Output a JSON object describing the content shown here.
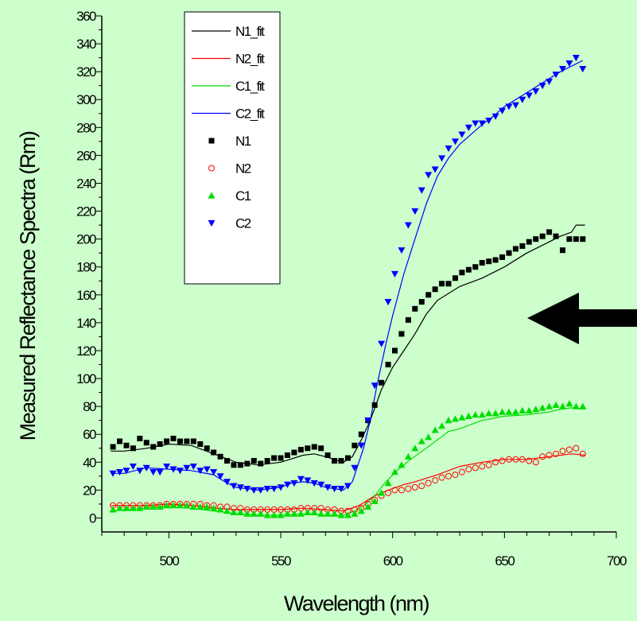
{
  "chart_data": {
    "type": "scatter",
    "title": "",
    "xlabel": "Wavelength (nm)",
    "ylabel": "Measured Reflectance Spectra (Rm)",
    "xlim": [
      470,
      700
    ],
    "ylim": [
      -10,
      360
    ],
    "xticks": [
      500,
      550,
      600,
      650,
      700
    ],
    "yticks": [
      0,
      20,
      40,
      60,
      80,
      100,
      120,
      140,
      160,
      180,
      200,
      220,
      240,
      260,
      280,
      300,
      320,
      340,
      360
    ],
    "x_tick_labels": [
      "500",
      "550",
      "600",
      "650",
      "700"
    ],
    "y_tick_labels": [
      "0",
      "20",
      "40",
      "60",
      "80",
      "100",
      "120",
      "140",
      "160",
      "180",
      "200",
      "220",
      "240",
      "260",
      "280",
      "300",
      "320",
      "340",
      "360"
    ],
    "grid": false,
    "legend_placement": "top-left",
    "legend": [
      {
        "label": "N1_fit",
        "kind": "line",
        "series": "N1"
      },
      {
        "label": "N2_fit",
        "kind": "line",
        "series": "N2"
      },
      {
        "label": "C1_fit",
        "kind": "line",
        "series": "C1"
      },
      {
        "label": "C2_fit",
        "kind": "line",
        "series": "C2"
      },
      {
        "label": "N1",
        "kind": "marker",
        "series": "N1"
      },
      {
        "label": "N2",
        "kind": "marker",
        "series": "N2"
      },
      {
        "label": "C1",
        "kind": "marker",
        "series": "C1"
      },
      {
        "label": "C2",
        "kind": "marker",
        "series": "C2"
      }
    ],
    "fits": [
      {
        "name": "N1_fit",
        "color": "#000000",
        "points": [
          [
            474,
            48
          ],
          [
            480,
            48
          ],
          [
            490,
            50
          ],
          [
            500,
            53
          ],
          [
            510,
            52
          ],
          [
            520,
            46
          ],
          [
            530,
            40
          ],
          [
            540,
            38
          ],
          [
            550,
            40
          ],
          [
            560,
            45
          ],
          [
            565,
            46
          ],
          [
            570,
            44
          ],
          [
            578,
            40
          ],
          [
            582,
            44
          ],
          [
            586,
            56
          ],
          [
            590,
            70
          ],
          [
            595,
            92
          ],
          [
            600,
            108
          ],
          [
            605,
            120
          ],
          [
            610,
            132
          ],
          [
            615,
            146
          ],
          [
            620,
            156
          ],
          [
            630,
            166
          ],
          [
            640,
            172
          ],
          [
            650,
            180
          ],
          [
            660,
            190
          ],
          [
            670,
            198
          ],
          [
            675,
            202
          ],
          [
            680,
            205
          ],
          [
            682,
            210
          ],
          [
            686,
            210
          ]
        ]
      },
      {
        "name": "N2_fit",
        "color": "#ff0000",
        "points": [
          [
            474,
            9
          ],
          [
            480,
            9
          ],
          [
            490,
            9
          ],
          [
            500,
            10
          ],
          [
            510,
            9
          ],
          [
            520,
            7
          ],
          [
            530,
            6
          ],
          [
            540,
            6
          ],
          [
            550,
            6
          ],
          [
            560,
            7
          ],
          [
            570,
            6
          ],
          [
            578,
            5
          ],
          [
            585,
            9
          ],
          [
            592,
            16
          ],
          [
            598,
            20
          ],
          [
            605,
            24
          ],
          [
            610,
            26
          ],
          [
            620,
            31
          ],
          [
            630,
            37
          ],
          [
            640,
            40
          ],
          [
            650,
            42
          ],
          [
            660,
            42
          ],
          [
            670,
            44
          ],
          [
            680,
            46
          ],
          [
            686,
            45
          ]
        ]
      },
      {
        "name": "C1_fit",
        "color": "#00dd00",
        "points": [
          [
            474,
            5
          ],
          [
            480,
            6
          ],
          [
            490,
            7
          ],
          [
            500,
            8
          ],
          [
            510,
            7
          ],
          [
            520,
            5
          ],
          [
            530,
            3
          ],
          [
            540,
            2
          ],
          [
            550,
            2
          ],
          [
            560,
            3
          ],
          [
            570,
            2
          ],
          [
            578,
            2
          ],
          [
            583,
            5
          ],
          [
            588,
            10
          ],
          [
            592,
            16
          ],
          [
            597,
            26
          ],
          [
            602,
            34
          ],
          [
            608,
            42
          ],
          [
            615,
            50
          ],
          [
            620,
            56
          ],
          [
            625,
            62
          ],
          [
            630,
            64
          ],
          [
            640,
            70
          ],
          [
            650,
            73
          ],
          [
            660,
            74
          ],
          [
            670,
            76
          ],
          [
            675,
            78
          ],
          [
            680,
            79
          ],
          [
            686,
            78
          ]
        ]
      },
      {
        "name": "C2_fit",
        "color": "#0000ff",
        "points": [
          [
            474,
            32
          ],
          [
            480,
            32
          ],
          [
            490,
            36
          ],
          [
            500,
            35
          ],
          [
            510,
            34
          ],
          [
            520,
            31
          ],
          [
            525,
            26
          ],
          [
            530,
            22
          ],
          [
            540,
            20
          ],
          [
            550,
            22
          ],
          [
            555,
            25
          ],
          [
            560,
            26
          ],
          [
            565,
            25
          ],
          [
            570,
            22
          ],
          [
            578,
            20
          ],
          [
            582,
            26
          ],
          [
            587,
            50
          ],
          [
            590,
            70
          ],
          [
            593,
            95
          ],
          [
            597,
            125
          ],
          [
            600,
            145
          ],
          [
            605,
            175
          ],
          [
            610,
            200
          ],
          [
            615,
            225
          ],
          [
            620,
            245
          ],
          [
            625,
            258
          ],
          [
            630,
            268
          ],
          [
            635,
            275
          ],
          [
            640,
            282
          ],
          [
            645,
            288
          ],
          [
            650,
            295
          ],
          [
            655,
            300
          ],
          [
            660,
            305
          ],
          [
            665,
            310
          ],
          [
            670,
            315
          ],
          [
            675,
            320
          ],
          [
            680,
            324
          ],
          [
            685,
            328
          ]
        ]
      }
    ],
    "series": [
      {
        "name": "N1",
        "marker": "square",
        "color": "#000000",
        "x": [
          475,
          478,
          481,
          484,
          487,
          490,
          493,
          496,
          499,
          502,
          505,
          508,
          511,
          514,
          517,
          520,
          523,
          526,
          529,
          532,
          535,
          538,
          541,
          544,
          547,
          550,
          553,
          556,
          559,
          562,
          565,
          568,
          571,
          574,
          577,
          580,
          583,
          586,
          589,
          592,
          595,
          598,
          601,
          604,
          607,
          610,
          613,
          616,
          619,
          622,
          625,
          628,
          631,
          634,
          637,
          640,
          643,
          646,
          649,
          652,
          655,
          658,
          661,
          664,
          667,
          670,
          673,
          676,
          679,
          682,
          685
        ],
        "y": [
          51,
          55,
          52,
          50,
          57,
          54,
          51,
          53,
          55,
          57,
          55,
          55,
          55,
          53,
          50,
          47,
          44,
          41,
          38,
          38,
          39,
          41,
          39,
          41,
          43,
          43,
          45,
          47,
          49,
          50,
          51,
          50,
          45,
          41,
          41,
          43,
          52,
          60,
          70,
          81,
          97,
          110,
          120,
          132,
          142,
          150,
          155,
          160,
          164,
          168,
          168,
          172,
          176,
          178,
          180,
          183,
          184,
          185,
          187,
          190,
          193,
          195,
          198,
          200,
          202,
          205,
          202,
          192,
          200,
          200,
          200
        ]
      },
      {
        "name": "N2",
        "marker": "open-circle",
        "color": "#ff0000",
        "x": [
          475,
          478,
          481,
          484,
          487,
          490,
          493,
          496,
          499,
          502,
          505,
          508,
          511,
          514,
          517,
          520,
          523,
          526,
          529,
          532,
          535,
          538,
          541,
          544,
          547,
          550,
          553,
          556,
          559,
          562,
          565,
          568,
          571,
          574,
          577,
          580,
          583,
          586,
          589,
          592,
          595,
          598,
          601,
          604,
          607,
          610,
          613,
          616,
          619,
          622,
          625,
          628,
          631,
          634,
          637,
          640,
          643,
          646,
          649,
          652,
          655,
          658,
          661,
          664,
          667,
          670,
          673,
          676,
          679,
          682,
          685
        ],
        "y": [
          9,
          9,
          9,
          9,
          9,
          9,
          9,
          9,
          10,
          10,
          10,
          10,
          10,
          10,
          9,
          9,
          8,
          8,
          7,
          7,
          6,
          6,
          6,
          6,
          6,
          6,
          6,
          6,
          7,
          7,
          7,
          7,
          6,
          6,
          5,
          5,
          6,
          7,
          10,
          13,
          16,
          18,
          20,
          20,
          21,
          22,
          23,
          25,
          27,
          29,
          30,
          31,
          33,
          35,
          36,
          37,
          38,
          40,
          41,
          42,
          42,
          42,
          41,
          40,
          44,
          45,
          46,
          48,
          49,
          50,
          46
        ]
      },
      {
        "name": "C1",
        "marker": "triangle-up",
        "color": "#00dd00",
        "x": [
          475,
          478,
          481,
          484,
          487,
          490,
          493,
          496,
          499,
          502,
          505,
          508,
          511,
          514,
          517,
          520,
          523,
          526,
          529,
          532,
          535,
          538,
          541,
          544,
          547,
          550,
          553,
          556,
          559,
          562,
          565,
          568,
          571,
          574,
          577,
          580,
          583,
          586,
          589,
          592,
          595,
          598,
          601,
          604,
          607,
          610,
          613,
          616,
          619,
          622,
          625,
          628,
          631,
          634,
          637,
          640,
          643,
          646,
          649,
          652,
          655,
          658,
          661,
          664,
          667,
          670,
          673,
          676,
          679,
          682,
          685
        ],
        "y": [
          6,
          7,
          7,
          7,
          7,
          8,
          8,
          8,
          9,
          9,
          9,
          9,
          8,
          8,
          8,
          7,
          6,
          5,
          4,
          4,
          3,
          3,
          3,
          2,
          2,
          2,
          3,
          3,
          3,
          4,
          4,
          3,
          3,
          3,
          2,
          2,
          3,
          5,
          8,
          12,
          18,
          25,
          33,
          38,
          44,
          50,
          55,
          58,
          63,
          66,
          70,
          71,
          72,
          73,
          74,
          74,
          75,
          75,
          76,
          76,
          76,
          77,
          77,
          78,
          79,
          80,
          81,
          80,
          82,
          80,
          80
        ]
      },
      {
        "name": "C2",
        "marker": "triangle-down",
        "color": "#0000ff",
        "x": [
          475,
          478,
          481,
          484,
          487,
          490,
          493,
          496,
          499,
          502,
          505,
          508,
          511,
          514,
          517,
          520,
          523,
          526,
          529,
          532,
          535,
          538,
          541,
          544,
          547,
          550,
          553,
          556,
          559,
          562,
          565,
          568,
          571,
          574,
          577,
          580,
          583,
          586,
          589,
          592,
          595,
          598,
          601,
          604,
          607,
          610,
          613,
          616,
          619,
          622,
          625,
          628,
          631,
          634,
          637,
          640,
          643,
          646,
          649,
          652,
          655,
          658,
          661,
          664,
          667,
          670,
          673,
          676,
          679,
          682,
          685
        ],
        "y": [
          32,
          33,
          34,
          37,
          34,
          36,
          33,
          33,
          37,
          35,
          34,
          36,
          37,
          34,
          35,
          33,
          30,
          26,
          23,
          22,
          21,
          20,
          20,
          21,
          21,
          22,
          24,
          25,
          28,
          27,
          25,
          24,
          22,
          21,
          21,
          23,
          36,
          52,
          70,
          95,
          125,
          155,
          175,
          192,
          210,
          220,
          235,
          246,
          250,
          258,
          265,
          270,
          275,
          280,
          283,
          283,
          285,
          288,
          292,
          295,
          296,
          300,
          303,
          306,
          310,
          313,
          318,
          322,
          326,
          330,
          322
        ]
      }
    ],
    "annotations": [
      {
        "type": "arrow",
        "direction": "left",
        "color": "#000000"
      }
    ]
  }
}
